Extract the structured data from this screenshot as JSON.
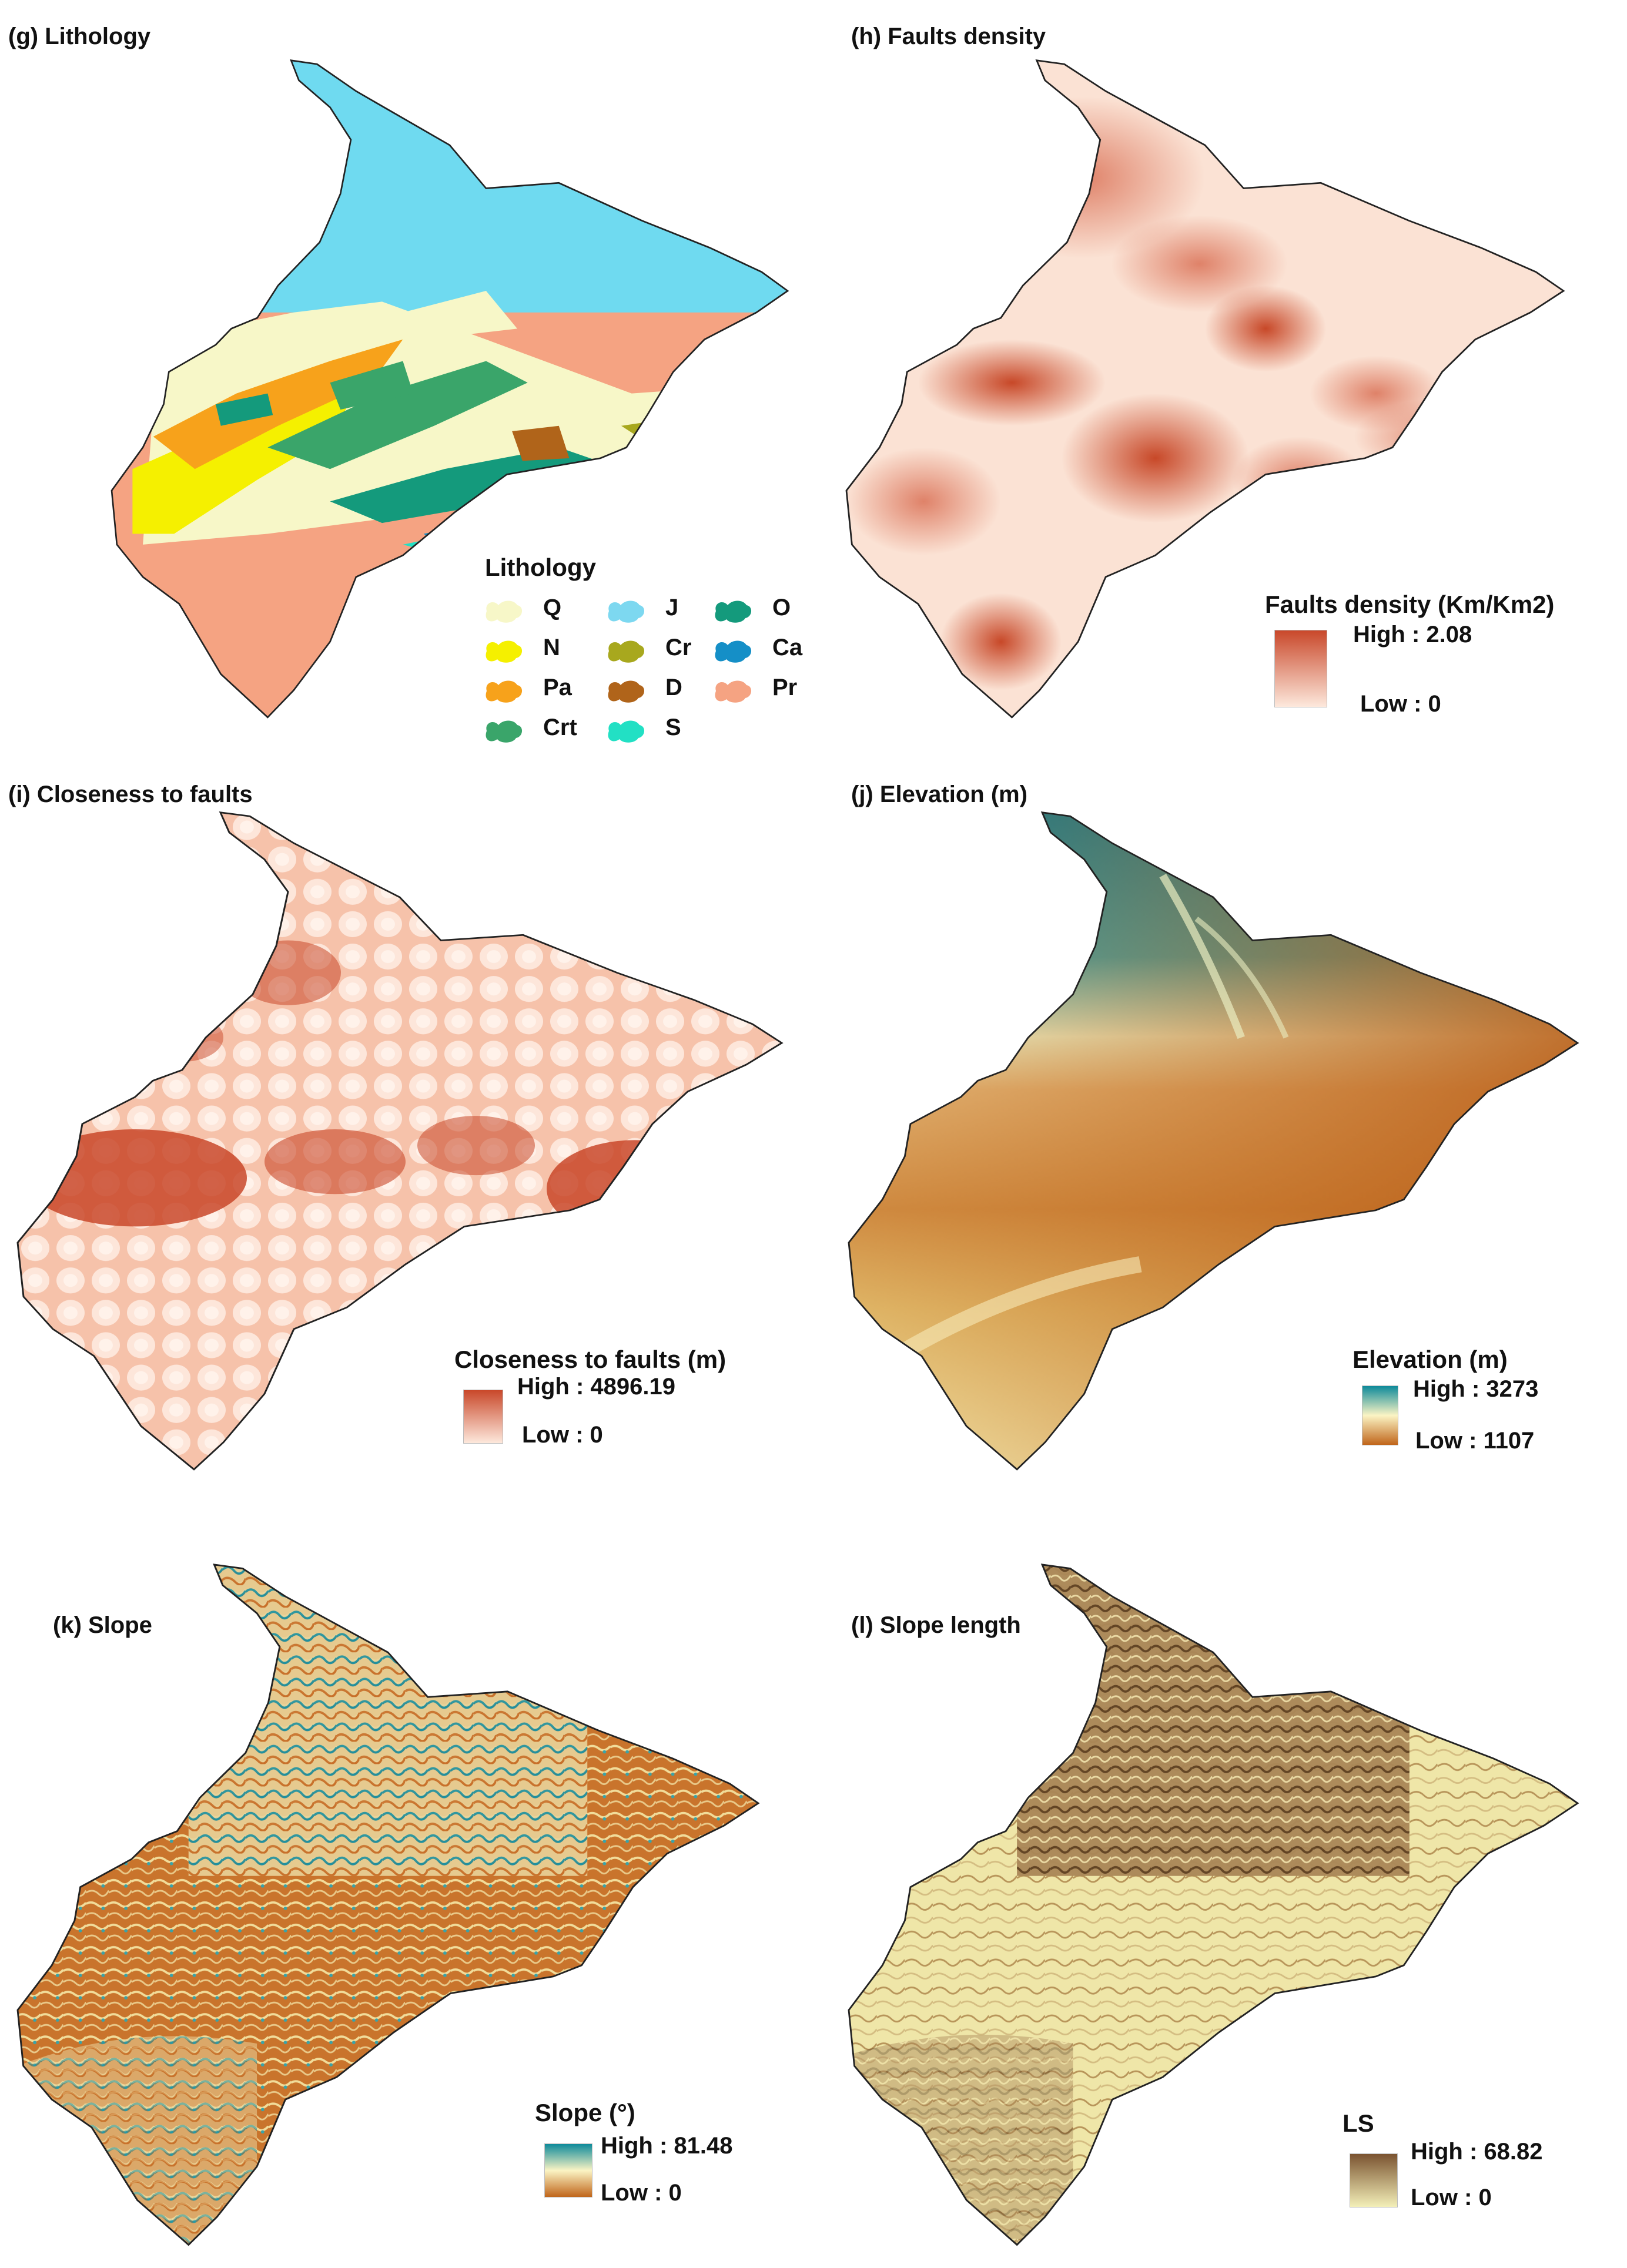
{
  "panels": {
    "g": {
      "title": "(g) Lithology",
      "legend_title": "Lithology",
      "classes": [
        {
          "code": "Q",
          "color": "#f7f7c8"
        },
        {
          "code": "N",
          "color": "#f5f000"
        },
        {
          "code": "Pa",
          "color": "#f7a21b"
        },
        {
          "code": "Crt",
          "color": "#3aa56a"
        },
        {
          "code": "J",
          "color": "#7dd8f0"
        },
        {
          "code": "Cr",
          "color": "#a8a81e"
        },
        {
          "code": "D",
          "color": "#b0641a"
        },
        {
          "code": "S",
          "color": "#22e0c4"
        },
        {
          "code": "O",
          "color": "#149a7c"
        },
        {
          "code": "Ca",
          "color": "#158fc7"
        },
        {
          "code": "Pr",
          "color": "#f5a382"
        }
      ]
    },
    "h": {
      "title": "(h) Faults density",
      "legend_title": "Faults density  (Km/Km2)",
      "high_label": "High : 2.08",
      "low_label": "Low : 0",
      "color_high": "#c9482a",
      "color_low": "#fde8dc"
    },
    "i": {
      "title": "(i) Closeness to faults",
      "legend_title": "Closeness to faults (m)",
      "high_label": "High : 4896.19",
      "low_label": "Low : 0",
      "color_high": "#c9482a",
      "color_low": "#fde8dc"
    },
    "j": {
      "title": "(j) Elevation (m)",
      "legend_title": "Elevation (m)",
      "high_label": "High : 3273",
      "low_label": "Low : 1107",
      "color_high": "#0d8a9a",
      "color_mid": "#fbf4c4",
      "color_low": "#c0651a"
    },
    "k": {
      "title": "(k) Slope",
      "legend_title": "Slope (°)",
      "high_label": "High : 81.48",
      "low_label": "Low : 0",
      "color_high": "#0d8a9a",
      "color_mid": "#fbf4c4",
      "color_low": "#c0651a"
    },
    "l": {
      "title": "(l) Slope length",
      "legend_title": "LS",
      "high_label": "High : 68.82",
      "low_label": "Low : 0",
      "color_high": "#7a5330",
      "color_low": "#f3efb8"
    }
  }
}
